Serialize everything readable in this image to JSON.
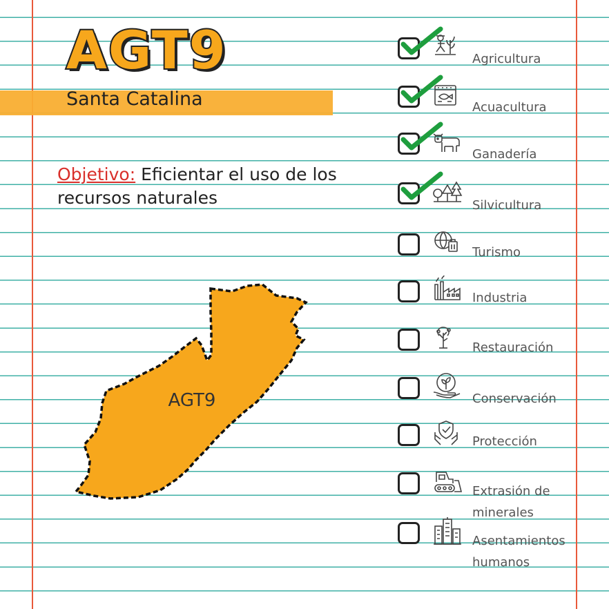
{
  "header": {
    "title": "AGT9",
    "subtitle": "Santa Catalina"
  },
  "objective": {
    "label": "Objetivo:",
    "text": "Eficientar el uso de los recursos naturales"
  },
  "map": {
    "region_label": "AGT9",
    "fill_color": "#f7a71c"
  },
  "colors": {
    "accent": "#f7a71c",
    "rule_line": "#3fb0a6",
    "margin_line": "#e8593a",
    "check": "#1e9e3e",
    "objective_label": "#d92f2a"
  },
  "checklist": [
    {
      "label": "Agricultura",
      "checked": true,
      "icon": "farmer-icon"
    },
    {
      "label": "Acuacultura",
      "checked": true,
      "icon": "fish-tank-icon"
    },
    {
      "label": "Ganadería",
      "checked": true,
      "icon": "cow-icon"
    },
    {
      "label": "Silvicultura",
      "checked": true,
      "icon": "trees-icon"
    },
    {
      "label": "Turismo",
      "checked": false,
      "icon": "globe-luggage-icon"
    },
    {
      "label": "Industria",
      "checked": false,
      "icon": "factory-icon"
    },
    {
      "label": "Restauración",
      "checked": false,
      "icon": "tree-restoration-icon"
    },
    {
      "label": "Conservación",
      "checked": false,
      "icon": "hand-plant-icon"
    },
    {
      "label": "Protección",
      "checked": false,
      "icon": "shield-hands-icon"
    },
    {
      "label": "Extrasión de minerales",
      "label_line1": "Extrasión de",
      "label_line2": "minerales",
      "checked": false,
      "icon": "bulldozer-icon"
    },
    {
      "label": "Asentamientos humanos",
      "label_line1": "Asentamientos",
      "label_line2": "humanos",
      "checked": false,
      "icon": "city-icon"
    }
  ]
}
